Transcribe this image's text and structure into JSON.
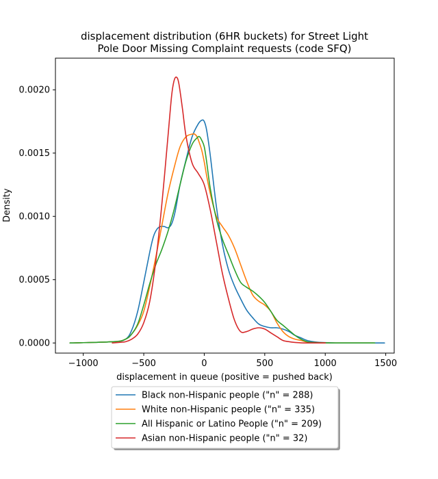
{
  "chart_data": {
    "type": "line",
    "title_lines": [
      "displacement distribution (6HR buckets) for Street Light",
      "Pole Door Missing Complaint requests (code SFQ)"
    ],
    "xlabel": "displacement in queue (positive = pushed back)",
    "ylabel": "Density",
    "xlim": [
      -1230,
      1570
    ],
    "ylim": [
      -8e-05,
      0.00225
    ],
    "x_ticks": [
      -1000,
      -500,
      0,
      500,
      1000,
      1500
    ],
    "x_tick_labels": [
      "−1000",
      "−500",
      "0",
      "500",
      "1000",
      "1500"
    ],
    "y_ticks": [
      0,
      0.0005,
      0.001,
      0.0015,
      0.002
    ],
    "y_tick_labels": [
      "0.0000",
      "0.0005",
      "0.0010",
      "0.0015",
      "0.0020"
    ],
    "grid": false,
    "legend_position": "below",
    "series": [
      {
        "name": "Black non-Hispanic people (\"n\" = 288)",
        "color": "#1f77b4",
        "x": [
          -1110,
          -750,
          -650,
          -600,
          -550,
          -500,
          -450,
          -420,
          -390,
          -360,
          -330,
          -300,
          -270,
          -240,
          -200,
          -150,
          -100,
          -50,
          -20,
          0,
          20,
          50,
          100,
          150,
          200,
          250,
          300,
          350,
          400,
          450,
          500,
          550,
          600,
          650,
          700,
          750,
          800,
          850,
          900,
          950,
          1000,
          1100,
          1200,
          1300,
          1400,
          1490
        ],
        "y": [
          0,
          1e-05,
          3e-05,
          0.0001,
          0.00025,
          0.00048,
          0.00072,
          0.00084,
          0.0009,
          0.00092,
          0.00092,
          0.00091,
          0.00094,
          0.00104,
          0.00125,
          0.00145,
          0.00163,
          0.00173,
          0.00176,
          0.00175,
          0.00168,
          0.00148,
          0.00108,
          0.00078,
          0.00058,
          0.00045,
          0.00035,
          0.00026,
          0.0002,
          0.00015,
          0.00013,
          0.00012,
          0.00012,
          0.00011,
          9e-05,
          6e-05,
          4e-05,
          2e-05,
          1e-05,
          5e-06,
          3e-06,
          0,
          0,
          0,
          0,
          0
        ]
      },
      {
        "name": "White non-Hispanic people (\"n\" = 335)",
        "color": "#ff7f0e",
        "x": [
          -1110,
          -750,
          -650,
          -600,
          -550,
          -500,
          -450,
          -400,
          -350,
          -300,
          -250,
          -200,
          -150,
          -100,
          -80,
          -60,
          -40,
          -20,
          0,
          20,
          50,
          100,
          150,
          200,
          250,
          300,
          350,
          400,
          450,
          500,
          550,
          600,
          650,
          700,
          750,
          800,
          850,
          900,
          1000,
          1100,
          1200,
          1300,
          1400
        ],
        "y": [
          0,
          1e-05,
          3e-05,
          7e-05,
          0.00014,
          0.00025,
          0.00045,
          0.00068,
          0.00093,
          0.00118,
          0.00138,
          0.00155,
          0.00163,
          0.00165,
          0.00165,
          0.00163,
          0.00158,
          0.00152,
          0.00143,
          0.00132,
          0.00118,
          0.001,
          0.00092,
          0.00085,
          0.00075,
          0.00062,
          0.00049,
          0.00038,
          0.00033,
          0.0003,
          0.00025,
          0.00016,
          9e-05,
          5e-05,
          3e-05,
          2e-05,
          8e-06,
          4e-06,
          1e-06,
          0,
          0,
          0,
          0
        ]
      },
      {
        "name": "All Hispanic or Latino People (\"n\" = 209)",
        "color": "#2ca02c",
        "x": [
          -1110,
          -750,
          -650,
          -600,
          -550,
          -500,
          -450,
          -400,
          -350,
          -300,
          -250,
          -200,
          -150,
          -100,
          -60,
          -40,
          -20,
          0,
          20,
          50,
          100,
          150,
          200,
          250,
          300,
          350,
          400,
          450,
          500,
          550,
          600,
          650,
          700,
          750,
          800,
          850,
          900,
          1000,
          1100,
          1200,
          1300,
          1410
        ],
        "y": [
          0,
          1e-05,
          3e-05,
          7e-05,
          0.00015,
          0.0003,
          0.00047,
          0.00062,
          0.00074,
          0.00088,
          0.00105,
          0.00125,
          0.00144,
          0.00157,
          0.00162,
          0.00163,
          0.0016,
          0.00155,
          0.00143,
          0.00122,
          0.00098,
          0.00082,
          0.0007,
          0.00058,
          0.00048,
          0.00044,
          0.00041,
          0.00037,
          0.00032,
          0.00025,
          0.00018,
          0.00014,
          0.0001,
          6e-05,
          3e-05,
          1e-05,
          4e-06,
          1e-06,
          0,
          0,
          0,
          0
        ]
      },
      {
        "name": "Asian non-Hispanic people (\"n\" = 32)",
        "color": "#d62728",
        "x": [
          -760,
          -700,
          -650,
          -600,
          -550,
          -500,
          -450,
          -400,
          -350,
          -300,
          -270,
          -250,
          -230,
          -210,
          -180,
          -150,
          -100,
          -50,
          0,
          50,
          100,
          150,
          200,
          250,
          300,
          350,
          400,
          450,
          500,
          550,
          600,
          650,
          700,
          750,
          800,
          850,
          900,
          950,
          1000
        ],
        "y": [
          0,
          5e-06,
          1e-05,
          3e-05,
          7e-05,
          0.00016,
          0.00033,
          0.00065,
          0.0011,
          0.00163,
          0.00195,
          0.00207,
          0.0021,
          0.00205,
          0.00185,
          0.00163,
          0.00142,
          0.00134,
          0.00125,
          0.00105,
          0.0008,
          0.00055,
          0.00035,
          0.00018,
          9e-05,
          9e-05,
          0.00011,
          0.00012,
          0.00011,
          8e-05,
          5e-05,
          2e-05,
          1e-05,
          4e-06,
          1e-06,
          0,
          0,
          0,
          0
        ]
      }
    ]
  }
}
